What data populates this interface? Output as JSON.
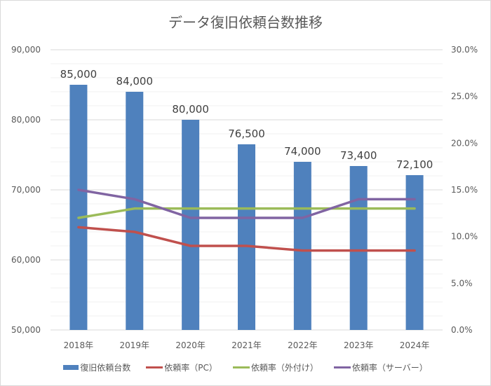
{
  "chart_data": {
    "type": "bar",
    "title": "データ復旧依頼台数推移",
    "categories": [
      "2018年",
      "2019年",
      "2020年",
      "2021年",
      "2022年",
      "2023年",
      "2024年"
    ],
    "series": [
      {
        "name": "復旧依頼台数",
        "type": "bar",
        "axis": "left",
        "color": "#4f81bd",
        "values": [
          85000,
          84000,
          80000,
          76500,
          74000,
          73400,
          72100
        ],
        "labels": [
          "85,000",
          "84,000",
          "80,000",
          "76,500",
          "74,000",
          "73,400",
          "72,100"
        ]
      },
      {
        "name": "依頼率（PC）",
        "type": "line",
        "axis": "right",
        "color": "#c0504d",
        "values": [
          11.0,
          10.5,
          9.0,
          9.0,
          8.5,
          8.5,
          8.5
        ]
      },
      {
        "name": "依頼率（外付け）",
        "type": "line",
        "axis": "right",
        "color": "#9bbb59",
        "values": [
          12.0,
          13.0,
          13.0,
          13.0,
          13.0,
          13.0,
          13.0
        ]
      },
      {
        "name": "依頼率（サーバー）",
        "type": "line",
        "axis": "right",
        "color": "#8064a2",
        "values": [
          15.0,
          14.0,
          12.0,
          12.0,
          12.0,
          14.0,
          14.0
        ]
      }
    ],
    "xlabel": "",
    "ylabel": "",
    "ylim": [
      50000,
      90000
    ],
    "y_ticks": [
      "90,000",
      "80,000",
      "70,000",
      "60,000",
      "50,000"
    ],
    "y2lim": [
      0,
      30
    ],
    "y2_ticks": [
      "30.0%",
      "25.0%",
      "20.0%",
      "15.0%",
      "10.0%",
      "5.0%",
      "0.0%"
    ],
    "grid": true,
    "legend_position": "bottom"
  },
  "legend": [
    {
      "label": "復旧依頼台数",
      "color": "#4f81bd",
      "kind": "bar"
    },
    {
      "label": "依頼率（PC）",
      "color": "#c0504d",
      "kind": "line"
    },
    {
      "label": "依頼率（外付け）",
      "color": "#9bbb59",
      "kind": "line"
    },
    {
      "label": "依頼率（サーバー）",
      "color": "#8064a2",
      "kind": "line"
    }
  ]
}
